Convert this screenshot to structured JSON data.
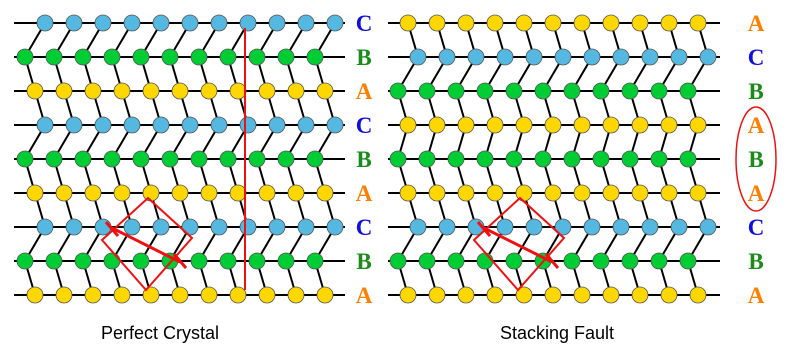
{
  "panels": [
    {
      "caption": "Perfect Crystal",
      "layers": [
        "C",
        "B",
        "A",
        "C",
        "B",
        "A",
        "C",
        "B",
        "A"
      ]
    },
    {
      "caption": "Stacking Fault",
      "layers": [
        "A",
        "C",
        "B",
        "A",
        "B",
        "A",
        "C",
        "B",
        "A"
      ],
      "fault_marker": "ellipse around the A-B-A layers"
    }
  ],
  "colors": {
    "A": "#ffd700",
    "B": "#00cc33",
    "C": "#55b8e0",
    "label_A": "#ff7f00",
    "label_B": "#1a8c1a",
    "label_C": "#1010dd",
    "bond": "#000000",
    "highlight": "#ee1111"
  }
}
